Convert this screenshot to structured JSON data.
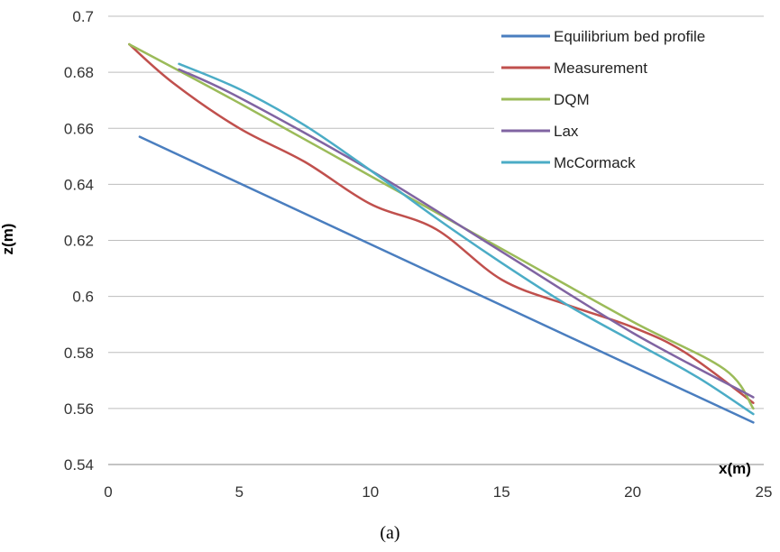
{
  "caption": "(a)",
  "chart_data": {
    "type": "line",
    "title": "",
    "xlabel": "x(m)",
    "ylabel": "z(m)",
    "xlim": [
      0,
      25
    ],
    "ylim": [
      0.54,
      0.7
    ],
    "xticks": [
      0,
      5,
      10,
      15,
      20,
      25
    ],
    "yticks": [
      0.54,
      0.56,
      0.58,
      0.6,
      0.62,
      0.64,
      0.66,
      0.68,
      0.7
    ],
    "xtick_labels": [
      "0",
      "5",
      "10",
      "15",
      "20",
      "25"
    ],
    "ytick_labels": [
      "0.54",
      "0.56",
      "0.58",
      "0.6",
      "0.62",
      "0.64",
      "0.66",
      "0.68",
      "0.7"
    ],
    "grid": "horizontal",
    "legend_position": "top-right",
    "series": [
      {
        "name": "Equilibrium bed profile",
        "color": "#4a7ebf",
        "x": [
          1.2,
          24.6
        ],
        "y": [
          0.657,
          0.555
        ]
      },
      {
        "name": "Measurement",
        "color": "#c0504d",
        "x": [
          0.8,
          2.5,
          5,
          7.5,
          10,
          12.5,
          15,
          17.5,
          20,
          22,
          24.6
        ],
        "y": [
          0.69,
          0.676,
          0.66,
          0.648,
          0.633,
          0.624,
          0.606,
          0.597,
          0.589,
          0.58,
          0.562
        ]
      },
      {
        "name": "DQM",
        "color": "#9bbb59",
        "x": [
          0.8,
          5,
          10,
          15,
          20,
          23.5,
          24.6
        ],
        "y": [
          0.69,
          0.669,
          0.643,
          0.617,
          0.591,
          0.574,
          0.56
        ]
      },
      {
        "name": "Lax",
        "color": "#8064a2",
        "x": [
          2.7,
          5,
          10,
          15,
          20,
          24.6
        ],
        "y": [
          0.681,
          0.671,
          0.645,
          0.616,
          0.587,
          0.564
        ]
      },
      {
        "name": "McCormack",
        "color": "#4bacc6",
        "x": [
          2.7,
          5,
          7.5,
          10,
          12.5,
          15,
          17.5,
          20,
          22.5,
          24.6
        ],
        "y": [
          0.683,
          0.674,
          0.661,
          0.645,
          0.628,
          0.612,
          0.597,
          0.584,
          0.571,
          0.558
        ]
      }
    ]
  }
}
